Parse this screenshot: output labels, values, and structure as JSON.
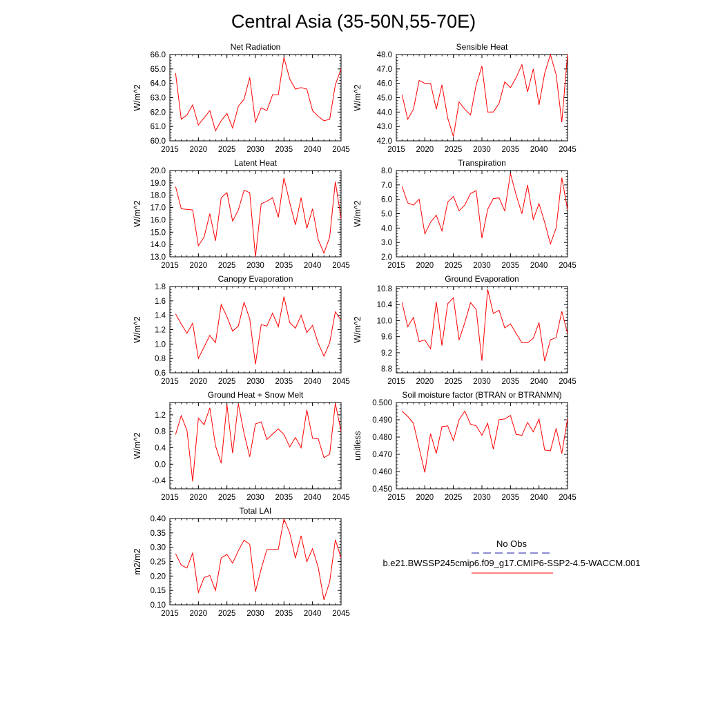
{
  "title": "Central Asia (35-50N,55-70E)",
  "legend": {
    "items": [
      {
        "label": "No Obs",
        "color": "#1a1aa6",
        "dash": true
      },
      {
        "label": "b.e21.BWSSP245cmip6.f09_g17.CMIP6-SSP2-4.5-WACCM.001",
        "color": "#ff0000",
        "dash": false
      }
    ]
  },
  "chart_data": [
    {
      "type": "line",
      "title": "Net Radiation",
      "ylabel": "W/m^2",
      "xlim": [
        2015,
        2045
      ],
      "ylim": [
        60.0,
        66.0
      ],
      "xticks": [
        "2015",
        "2020",
        "2025",
        "2030",
        "2035",
        "2040",
        "2045"
      ],
      "yticks": [
        "60.0",
        "61.0",
        "62.0",
        "63.0",
        "64.0",
        "65.0",
        "66.0"
      ],
      "x": [
        2016,
        2017,
        2018,
        2019,
        2020,
        2021,
        2022,
        2023,
        2024,
        2025,
        2026,
        2027,
        2028,
        2029,
        2030,
        2031,
        2032,
        2033,
        2034,
        2035,
        2036,
        2037,
        2038,
        2039,
        2040,
        2041,
        2042,
        2043,
        2044,
        2045
      ],
      "series": [
        {
          "values": [
            64.7,
            61.5,
            61.8,
            62.5,
            61.1,
            61.6,
            62.1,
            60.7,
            61.4,
            61.9,
            60.9,
            62.4,
            62.9,
            64.4,
            61.3,
            62.3,
            62.1,
            63.2,
            63.2,
            65.8,
            64.3,
            63.6,
            63.7,
            63.6,
            62.1,
            61.7,
            61.4,
            61.5,
            63.9,
            65.0
          ],
          "color": "#ff0000"
        }
      ]
    },
    {
      "type": "line",
      "title": "Sensible Heat",
      "ylabel": "W/m^2",
      "xlim": [
        2015,
        2045
      ],
      "ylim": [
        42.0,
        48.0
      ],
      "xticks": [
        "2015",
        "2020",
        "2025",
        "2030",
        "2035",
        "2040",
        "2045"
      ],
      "yticks": [
        "42.0",
        "43.0",
        "44.0",
        "45.0",
        "46.0",
        "47.0",
        "48.0"
      ],
      "x": [
        2016,
        2017,
        2018,
        2019,
        2020,
        2021,
        2022,
        2023,
        2024,
        2025,
        2026,
        2027,
        2028,
        2029,
        2030,
        2031,
        2032,
        2033,
        2034,
        2035,
        2036,
        2037,
        2038,
        2039,
        2040,
        2041,
        2042,
        2043,
        2044,
        2045
      ],
      "series": [
        {
          "values": [
            45.2,
            43.5,
            44.2,
            46.2,
            46.0,
            46.0,
            44.2,
            45.9,
            43.6,
            42.3,
            44.7,
            44.2,
            43.8,
            45.9,
            47.2,
            44.0,
            44.0,
            44.6,
            46.1,
            45.7,
            46.4,
            47.3,
            45.4,
            47.0,
            44.5,
            46.7,
            48.0,
            46.6,
            43.3,
            48.0
          ],
          "color": "#ff0000"
        }
      ]
    },
    {
      "type": "line",
      "title": "Latent Heat",
      "ylabel": "W/m^2",
      "xlim": [
        2015,
        2045
      ],
      "ylim": [
        13.0,
        20.0
      ],
      "xticks": [
        "2015",
        "2020",
        "2025",
        "2030",
        "2035",
        "2040",
        "2045"
      ],
      "yticks": [
        "13.0",
        "14.0",
        "15.0",
        "16.0",
        "17.0",
        "18.0",
        "19.0",
        "20.0"
      ],
      "x": [
        2016,
        2017,
        2018,
        2019,
        2020,
        2021,
        2022,
        2023,
        2024,
        2025,
        2026,
        2027,
        2028,
        2029,
        2030,
        2031,
        2032,
        2033,
        2034,
        2035,
        2036,
        2037,
        2038,
        2039,
        2040,
        2041,
        2042,
        2043,
        2044,
        2045
      ],
      "series": [
        {
          "values": [
            18.7,
            16.9,
            16.85,
            16.8,
            13.9,
            14.6,
            16.5,
            14.3,
            17.8,
            18.2,
            15.9,
            16.8,
            18.4,
            18.2,
            13.0,
            17.3,
            17.5,
            17.8,
            16.2,
            19.4,
            17.4,
            15.6,
            17.8,
            15.3,
            16.9,
            14.4,
            13.3,
            14.6,
            19.1,
            16.1
          ],
          "color": "#ff0000"
        }
      ]
    },
    {
      "type": "line",
      "title": "Transpiration",
      "ylabel": "W/m^2",
      "xlim": [
        2015,
        2045
      ],
      "ylim": [
        2.0,
        8.0
      ],
      "xticks": [
        "2015",
        "2020",
        "2025",
        "2030",
        "2035",
        "2040",
        "2045"
      ],
      "yticks": [
        "2.0",
        "3.0",
        "4.0",
        "5.0",
        "6.0",
        "7.0",
        "8.0"
      ],
      "x": [
        2016,
        2017,
        2018,
        2019,
        2020,
        2021,
        2022,
        2023,
        2024,
        2025,
        2026,
        2027,
        2028,
        2029,
        2030,
        2031,
        2032,
        2033,
        2034,
        2035,
        2036,
        2037,
        2038,
        2039,
        2040,
        2041,
        2042,
        2043,
        2044,
        2045
      ],
      "series": [
        {
          "values": [
            6.9,
            5.75,
            5.6,
            6.0,
            3.6,
            4.4,
            4.9,
            3.8,
            5.8,
            6.2,
            5.2,
            5.6,
            6.4,
            6.6,
            3.3,
            5.3,
            6.05,
            6.1,
            5.2,
            7.8,
            6.3,
            5.0,
            7.0,
            4.6,
            5.7,
            4.4,
            2.9,
            4.0,
            7.5,
            5.3
          ],
          "color": "#ff0000"
        }
      ]
    },
    {
      "type": "line",
      "title": "Canopy Evaporation",
      "ylabel": "W/m^2",
      "xlim": [
        2015,
        2045
      ],
      "ylim": [
        0.6,
        1.8
      ],
      "xticks": [
        "2015",
        "2020",
        "2025",
        "2030",
        "2035",
        "2040",
        "2045"
      ],
      "yticks": [
        "0.6",
        "0.8",
        "1.0",
        "1.2",
        "1.4",
        "1.6",
        "1.8"
      ],
      "x": [
        2016,
        2017,
        2018,
        2019,
        2020,
        2021,
        2022,
        2023,
        2024,
        2025,
        2026,
        2027,
        2028,
        2029,
        2030,
        2031,
        2032,
        2033,
        2034,
        2035,
        2036,
        2037,
        2038,
        2039,
        2040,
        2041,
        2042,
        2043,
        2044,
        2045
      ],
      "series": [
        {
          "values": [
            1.42,
            1.28,
            1.15,
            1.29,
            0.8,
            0.96,
            1.12,
            1.02,
            1.55,
            1.38,
            1.18,
            1.25,
            1.58,
            1.35,
            0.72,
            1.27,
            1.25,
            1.43,
            1.24,
            1.66,
            1.3,
            1.22,
            1.4,
            1.16,
            1.26,
            1.01,
            0.83,
            1.02,
            1.45,
            1.33
          ],
          "color": "#ff0000"
        }
      ]
    },
    {
      "type": "line",
      "title": "Ground Evaporation",
      "ylabel": "W/m^2",
      "xlim": [
        2015,
        2045
      ],
      "ylim": [
        8.7,
        10.85
      ],
      "xticks": [
        "2015",
        "2020",
        "2025",
        "2030",
        "2035",
        "2040",
        "2045"
      ],
      "yticks": [
        "8.8",
        "9.2",
        "9.6",
        "10.0",
        "10.4",
        "10.8"
      ],
      "x": [
        2016,
        2017,
        2018,
        2019,
        2020,
        2021,
        2022,
        2023,
        2024,
        2025,
        2026,
        2027,
        2028,
        2029,
        2030,
        2031,
        2032,
        2033,
        2034,
        2035,
        2036,
        2037,
        2038,
        2039,
        2040,
        2041,
        2042,
        2043,
        2044,
        2045
      ],
      "series": [
        {
          "values": [
            10.45,
            9.85,
            10.08,
            9.48,
            9.52,
            9.3,
            10.47,
            9.38,
            10.42,
            10.57,
            9.52,
            9.95,
            10.45,
            10.28,
            9.0,
            10.78,
            10.18,
            10.26,
            9.82,
            9.92,
            9.68,
            9.45,
            9.45,
            9.56,
            9.95,
            8.99,
            9.52,
            9.58,
            10.23,
            9.68
          ],
          "color": "#ff0000"
        }
      ]
    },
    {
      "type": "line",
      "title": "Ground Heat + Snow Melt",
      "ylabel": "W/m^2",
      "xlim": [
        2015,
        2045
      ],
      "ylim": [
        -0.6,
        1.5
      ],
      "xticks": [
        "2015",
        "2020",
        "2025",
        "2030",
        "2035",
        "2040",
        "2045"
      ],
      "yticks": [
        "-0.4",
        "0.0",
        "0.4",
        "0.8",
        "1.2"
      ],
      "x": [
        2016,
        2017,
        2018,
        2019,
        2020,
        2021,
        2022,
        2023,
        2024,
        2025,
        2026,
        2027,
        2028,
        2029,
        2030,
        2031,
        2032,
        2033,
        2034,
        2035,
        2036,
        2037,
        2038,
        2039,
        2040,
        2041,
        2042,
        2043,
        2044,
        2045
      ],
      "series": [
        {
          "values": [
            0.72,
            1.18,
            0.82,
            -0.42,
            1.12,
            0.96,
            1.37,
            0.45,
            0.02,
            1.45,
            0.27,
            1.47,
            0.75,
            0.18,
            0.98,
            1.03,
            0.6,
            0.73,
            0.86,
            0.72,
            0.42,
            0.65,
            0.4,
            1.32,
            0.63,
            0.62,
            0.16,
            0.24,
            1.48,
            0.8
          ],
          "color": "#ff0000"
        }
      ]
    },
    {
      "type": "line",
      "title": "Soil moisture factor (BTRAN or BTRANMN)",
      "ylabel": "unitless",
      "xlim": [
        2015,
        2045
      ],
      "ylim": [
        0.45,
        0.5
      ],
      "xticks": [
        "2015",
        "2020",
        "2025",
        "2030",
        "2035",
        "2040",
        "2045"
      ],
      "yticks": [
        "0.450",
        "0.460",
        "0.470",
        "0.480",
        "0.490",
        "0.500"
      ],
      "x": [
        2016,
        2017,
        2018,
        2019,
        2020,
        2021,
        2022,
        2023,
        2024,
        2025,
        2026,
        2027,
        2028,
        2029,
        2030,
        2031,
        2032,
        2033,
        2034,
        2035,
        2036,
        2037,
        2038,
        2039,
        2040,
        2041,
        2042,
        2043,
        2044,
        2045
      ],
      "series": [
        {
          "values": [
            0.495,
            0.492,
            0.488,
            0.4735,
            0.4595,
            0.482,
            0.4705,
            0.486,
            0.4865,
            0.478,
            0.49,
            0.495,
            0.4875,
            0.4865,
            0.481,
            0.488,
            0.473,
            0.49,
            0.4905,
            0.4925,
            0.4815,
            0.481,
            0.4885,
            0.483,
            0.4905,
            0.4725,
            0.472,
            0.485,
            0.4705,
            0.4905
          ],
          "color": "#ff0000"
        }
      ]
    },
    {
      "type": "line",
      "title": "Total LAI",
      "ylabel": "m2/m2",
      "xlim": [
        2015,
        2045
      ],
      "ylim": [
        0.1,
        0.4
      ],
      "xticks": [
        "2015",
        "2020",
        "2025",
        "2030",
        "2035",
        "2040",
        "2045"
      ],
      "yticks": [
        "0.10",
        "0.15",
        "0.20",
        "0.25",
        "0.30",
        "0.35",
        "0.40"
      ],
      "x": [
        2016,
        2017,
        2018,
        2019,
        2020,
        2021,
        2022,
        2023,
        2024,
        2025,
        2026,
        2027,
        2028,
        2029,
        2030,
        2031,
        2032,
        2033,
        2034,
        2035,
        2036,
        2037,
        2038,
        2039,
        2040,
        2041,
        2042,
        2043,
        2044,
        2045
      ],
      "series": [
        {
          "values": [
            0.278,
            0.238,
            0.228,
            0.28,
            0.143,
            0.195,
            0.202,
            0.15,
            0.263,
            0.275,
            0.245,
            0.288,
            0.325,
            0.31,
            0.146,
            0.225,
            0.292,
            0.292,
            0.293,
            0.398,
            0.35,
            0.262,
            0.34,
            0.25,
            0.295,
            0.23,
            0.117,
            0.18,
            0.326,
            0.263
          ],
          "color": "#ff0000"
        }
      ]
    }
  ]
}
